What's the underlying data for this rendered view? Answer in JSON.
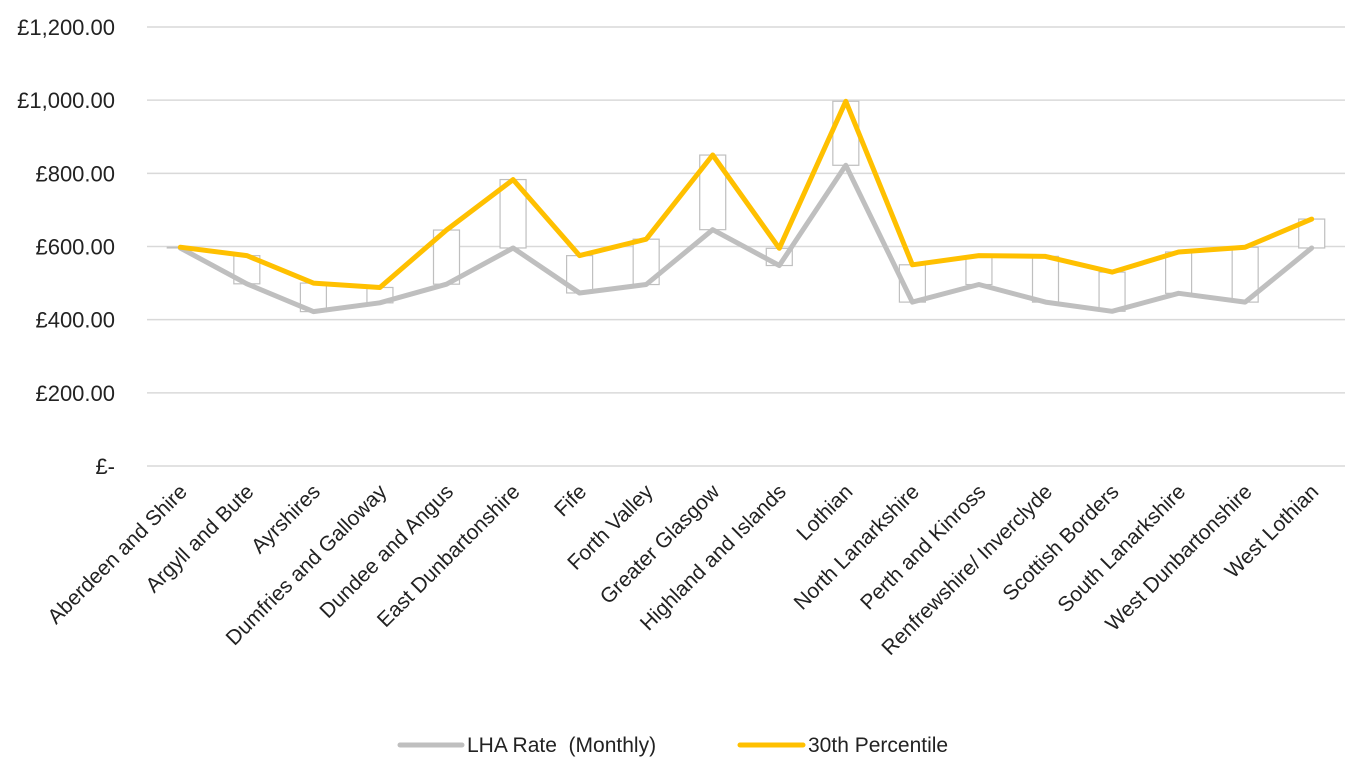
{
  "chart_data": {
    "type": "line",
    "categories": [
      "Aberdeen and Shire",
      "Argyll and Bute",
      "Ayrshires",
      "Dumfries and Galloway",
      "Dundee and Angus",
      "East Dunbartonshire",
      "Fife",
      "Forth Valley",
      "Greater Glasgow",
      "Highland and Islands",
      "Lothian",
      "North Lanarkshire",
      "Perth and Kinross",
      "Renfrewshire/ Inverclyde",
      "Scottish Borders",
      "South Lanarkshire",
      "West Dunbartonshire",
      "West Lothian"
    ],
    "series": [
      {
        "name": "LHA Rate  (Monthly)",
        "color": "#bfbfbf",
        "values": [
          596,
          498,
          422,
          446,
          497,
          596,
          473,
          496,
          646,
          548,
          822,
          448,
          496,
          448,
          423,
          472,
          448,
          596
        ]
      },
      {
        "name": "30th Percentile",
        "color": "#ffc000",
        "values": [
          598,
          575,
          500,
          488,
          645,
          783,
          575,
          620,
          850,
          595,
          997,
          550,
          575,
          573,
          530,
          585,
          598,
          675
        ]
      }
    ],
    "y_ticks": [
      "£-",
      "£200.00",
      "£400.00",
      "£600.00",
      "£800.00",
      "£1,000.00",
      "£1,200.00"
    ],
    "ylim": [
      0,
      1200
    ],
    "y_step": 200,
    "grid": true,
    "legend_position": "bottom",
    "up_down_bars": true
  }
}
